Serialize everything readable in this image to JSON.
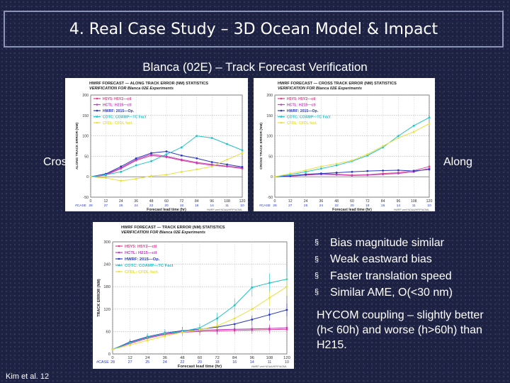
{
  "slide": {
    "title": "4. Real Case Study – 3D Ocean Model & Impact",
    "subtitle": "Blanca (02E) – Track Forecast Verification",
    "left_label": "Cross",
    "right_label": "Along",
    "bullets": [
      "Bias magnitude similar",
      "Weak eastward bias",
      "Faster translation speed",
      "Similar AME, O(<30 nm)"
    ],
    "bullet_marker": "§",
    "note": "HYCOM coupling – slightly better (h< 60h) and worse (h>60h) than H215.",
    "citation": "Kim et al. 12"
  },
  "legend": [
    {
      "name": "H5Y5:  H5Y2—ctl",
      "color": "#e0408a"
    },
    {
      "name": "HCTL:  H215—ctl",
      "color": "#c040c0"
    },
    {
      "name": "HWRF:  2015—Op.",
      "color": "#2838c0"
    },
    {
      "name": "COTC:  COAMP—TC Fact",
      "color": "#20c0c8"
    },
    {
      "name": "CFDL:  CFDL  fact.",
      "color": "#e8e040"
    }
  ],
  "chart_data": [
    {
      "type": "line",
      "title": "HWRF  FORECAST — ALONG TRACK ERROR (NM) STATISTICS",
      "subtitle": "VERIFICATION FOR Blanca 02E Experiments",
      "ylabel": "ALONG TRACK ERROR (NM)",
      "xlabel": "Forecast lead time (hr)",
      "x": [
        0,
        12,
        24,
        36,
        48,
        60,
        72,
        84,
        96,
        108,
        120
      ],
      "ylim": [
        -50,
        200
      ],
      "yticks": [
        -50,
        0,
        50,
        100,
        150,
        200
      ],
      "case_label": "#CASE",
      "cases": [
        "28",
        "27",
        "25",
        "24",
        "22",
        "20",
        "18",
        "16",
        "14",
        "11",
        "10"
      ],
      "footer": "HWRF  verif  NOAA/HFIP/AOML",
      "series": [
        {
          "name": "H5Y5:  H5Y2—ctl",
          "values": [
            0,
            4,
            20,
            40,
            52,
            48,
            40,
            33,
            28,
            25,
            20
          ]
        },
        {
          "name": "HCTL:  H215—ctl",
          "values": [
            0,
            6,
            22,
            42,
            55,
            50,
            42,
            35,
            30,
            26,
            22
          ]
        },
        {
          "name": "HWRF:  2015—Op.",
          "values": [
            0,
            7,
            25,
            45,
            58,
            62,
            52,
            45,
            36,
            30,
            24
          ]
        },
        {
          "name": "COTC:  COAMP—TC Fact",
          "values": [
            0,
            5,
            12,
            28,
            38,
            55,
            72,
            100,
            95,
            80,
            65
          ]
        },
        {
          "name": "CFDL:  CFDL  fact.",
          "values": [
            0,
            -3,
            -10,
            -5,
            2,
            5,
            12,
            18,
            25,
            42,
            58
          ]
        }
      ]
    },
    {
      "type": "line",
      "title": "HWRF  FORECAST — CROSS TRACK ERROR (NM) STATISTICS",
      "subtitle": "VERIFICATION FOR Blanca 02E Experiments",
      "ylabel": "CROSS TRACK ERROR (NM)",
      "xlabel": "Forecast lead time (hr)",
      "x": [
        0,
        12,
        24,
        36,
        48,
        60,
        72,
        84,
        96,
        108,
        120
      ],
      "ylim": [
        -50,
        200
      ],
      "yticks": [
        -50,
        0,
        50,
        100,
        150,
        200
      ],
      "case_label": "#CASE",
      "cases": [
        "28",
        "27",
        "25",
        "24",
        "22",
        "20",
        "18",
        "16",
        "14",
        "11",
        "10"
      ],
      "footer": "HWRF  verif  NOAA/HFIP/AOML",
      "series": [
        {
          "name": "H5Y5:  H5Y2—ctl",
          "values": [
            0,
            2,
            5,
            8,
            6,
            4,
            5,
            8,
            10,
            15,
            25
          ]
        },
        {
          "name": "HCTL:  H215—ctl",
          "values": [
            0,
            1,
            4,
            6,
            5,
            3,
            4,
            6,
            8,
            12,
            20
          ]
        },
        {
          "name": "HWRF:  2015—Op.",
          "values": [
            0,
            2,
            6,
            8,
            10,
            12,
            14,
            15,
            16,
            14,
            18
          ]
        },
        {
          "name": "COTC:  COAMP—TC Fact",
          "values": [
            0,
            5,
            12,
            20,
            28,
            38,
            52,
            72,
            100,
            125,
            145
          ]
        },
        {
          "name": "CFDL:  CFDL  fact.",
          "values": [
            0,
            8,
            16,
            25,
            32,
            40,
            55,
            75,
            95,
            110,
            130
          ]
        }
      ]
    },
    {
      "type": "line",
      "title": "HWRF  FORECAST — TRACK ERROR (NM) STATISTICS",
      "subtitle": "VERIFICATION FOR Blanca 02E Experiments",
      "ylabel": "TRACK ERROR (NM)",
      "xlabel": "Forecast lead time (hr)",
      "x": [
        0,
        12,
        24,
        36,
        48,
        60,
        72,
        84,
        96,
        108,
        120
      ],
      "ylim": [
        0,
        300
      ],
      "yticks": [
        0,
        60,
        120,
        180,
        240,
        300
      ],
      "case_label": "#CASE",
      "cases": [
        "28",
        "27",
        "25",
        "24",
        "22",
        "20",
        "18",
        "16",
        "14",
        "11",
        "10"
      ],
      "footer": "HWRF  verif  NOAA/HFIP/AOML",
      "series": [
        {
          "name": "H5Y5:  H5Y2—ctl",
          "values": [
            12,
            28,
            42,
            52,
            58,
            60,
            62,
            63,
            64,
            65,
            66
          ]
        },
        {
          "name": "HCTL:  H215—ctl",
          "values": [
            12,
            30,
            44,
            54,
            60,
            63,
            65,
            66,
            67,
            68,
            70
          ]
        },
        {
          "name": "HWRF:  2015—Op.",
          "values": [
            12,
            32,
            46,
            56,
            62,
            66,
            72,
            80,
            92,
            105,
            118
          ]
        },
        {
          "name": "COTC:  COAMP—TC Fact",
          "values": [
            12,
            30,
            45,
            55,
            60,
            70,
            95,
            130,
            178,
            190,
            200
          ]
        },
        {
          "name": "CFDL:  CFDL  fact.",
          "values": [
            12,
            24,
            36,
            48,
            58,
            65,
            75,
            95,
            120,
            150,
            180
          ]
        }
      ]
    }
  ]
}
